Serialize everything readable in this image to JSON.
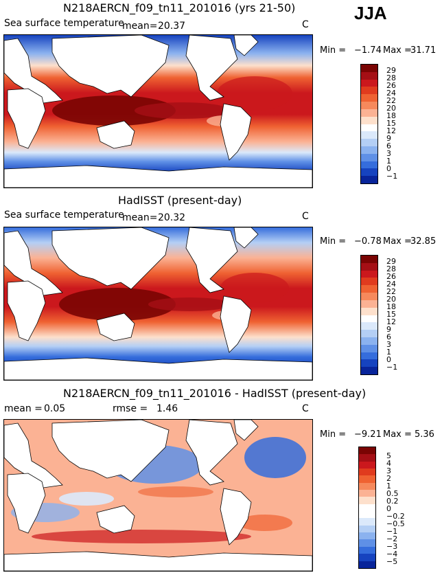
{
  "season": "JJA",
  "panels": [
    {
      "title": "N218AERCN_f09_tn11_201016 (yrs 21-50)",
      "left_label": "Sea surface temperature",
      "stat1_label": "mean=",
      "stat1_value": "20.37",
      "stat2_label": "",
      "stat2_value": "",
      "units": "C",
      "min_text": "Min =",
      "min_value": "−1.74",
      "max_text": "Max =",
      "max_value": "31.71",
      "colorbar_levels": [
        "29",
        "28",
        "26",
        "24",
        "22",
        "20",
        "18",
        "15",
        "12",
        "9",
        "6",
        "3",
        "1",
        "0",
        "−1"
      ]
    },
    {
      "title": "HadISST (present-day)",
      "left_label": "Sea surface temperature",
      "stat1_label": "mean=",
      "stat1_value": "20.32",
      "stat2_label": "",
      "stat2_value": "",
      "units": "C",
      "min_text": "Min =",
      "min_value": "−0.78",
      "max_text": "Max =",
      "max_value": "32.85",
      "colorbar_levels": [
        "29",
        "28",
        "26",
        "24",
        "22",
        "20",
        "18",
        "15",
        "12",
        "9",
        "6",
        "3",
        "1",
        "0",
        "−1"
      ]
    },
    {
      "title": "N218AERCN_f09_tn11_201016 - HadISST (present-day)",
      "left_label": "",
      "stat1_label": "mean =",
      "stat1_value": "0.05",
      "stat2_label": "rmse =",
      "stat2_value": "1.46",
      "units": "C",
      "min_text": "Min =",
      "min_value": "−9.21",
      "max_text": "Max =",
      "max_value": "5.36",
      "colorbar_levels": [
        "5",
        "4",
        "3",
        "2",
        "1",
        "0.5",
        "0.2",
        "0",
        "−0.2",
        "−0.5",
        "−1",
        "−2",
        "−3",
        "−4",
        "−5"
      ]
    }
  ],
  "colors": {
    "sst_scale": [
      "#7a0403",
      "#a50f15",
      "#cb181d",
      "#e03b1e",
      "#ef6232",
      "#f6895c",
      "#fbb294",
      "#fde0cc",
      "#ffffff",
      "#dbe9fb",
      "#b4cff5",
      "#8bb2ef",
      "#5f90e6",
      "#356ddc",
      "#1643bf",
      "#08249a"
    ],
    "diff_scale": [
      "#7a0403",
      "#a50f15",
      "#cb181d",
      "#e03b1e",
      "#ef6232",
      "#f6895c",
      "#fbb294",
      "#fde0cc",
      "#ffffff",
      "#ffffff",
      "#dbe9fb",
      "#b4cff5",
      "#8bb2ef",
      "#5f90e6",
      "#356ddc",
      "#1643bf",
      "#08249a"
    ],
    "land": "#ffffff",
    "coast": "#000000"
  }
}
